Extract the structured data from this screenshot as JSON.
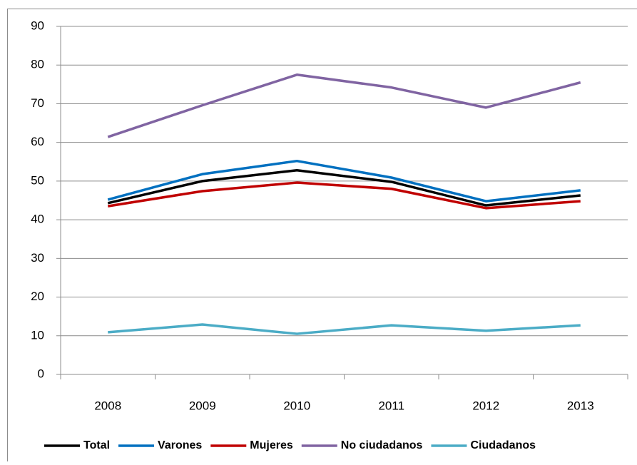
{
  "chart_data": {
    "type": "line",
    "categories": [
      "2008",
      "2009",
      "2010",
      "2011",
      "2012",
      "2013"
    ],
    "series": [
      {
        "name": "Total",
        "color": "#000000",
        "values": [
          44.3,
          50.0,
          52.8,
          49.8,
          43.7,
          46.3
        ]
      },
      {
        "name": "Varones",
        "color": "#0070c0",
        "values": [
          45.2,
          51.8,
          55.2,
          50.9,
          44.8,
          47.6
        ]
      },
      {
        "name": "Mujeres",
        "color": "#c00000",
        "values": [
          43.5,
          47.4,
          49.6,
          48.0,
          43.0,
          44.8
        ]
      },
      {
        "name": "No ciudadanos",
        "color": "#8064a2",
        "values": [
          61.4,
          69.6,
          77.5,
          74.2,
          69.0,
          75.5
        ]
      },
      {
        "name": "Ciudadanos",
        "color": "#4bacc6",
        "values": [
          10.9,
          12.9,
          10.5,
          12.7,
          11.3,
          12.7
        ]
      }
    ],
    "ylim": [
      0,
      90
    ],
    "yticks": [
      0,
      10,
      20,
      30,
      40,
      50,
      60,
      70,
      80,
      90
    ],
    "grid": true,
    "legend": "bottom"
  }
}
